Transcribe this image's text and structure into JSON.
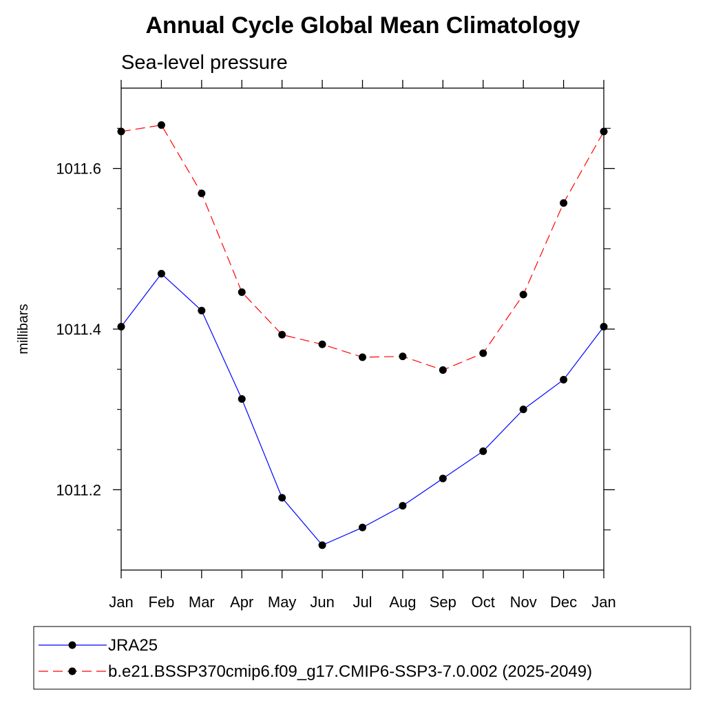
{
  "chart_data": {
    "type": "line",
    "title": "Annual Cycle Global Mean Climatology",
    "subtitle": "Sea-level pressure",
    "xlabel": "",
    "ylabel": "millibars",
    "categories": [
      "Jan",
      "Feb",
      "Mar",
      "Apr",
      "May",
      "Jun",
      "Jul",
      "Aug",
      "Sep",
      "Oct",
      "Nov",
      "Dec",
      "Jan"
    ],
    "ylim": [
      1011.1,
      1011.7
    ],
    "yticks": [
      1011.2,
      1011.4,
      1011.6
    ],
    "ytick_labels": [
      "1011.2",
      "1011.4",
      "1011.6"
    ],
    "yminor_step": 0.05,
    "grid": false,
    "legend_position": "bottom",
    "series": [
      {
        "name": "JRA25",
        "color": "#0000ff",
        "dash": "solid",
        "marker": "filled-circle",
        "values": [
          1011.403,
          1011.469,
          1011.423,
          1011.313,
          1011.19,
          1011.131,
          1011.153,
          1011.18,
          1011.214,
          1011.248,
          1011.3,
          1011.337,
          1011.403
        ]
      },
      {
        "name": "b.e21.BSSP370cmip6.f09_g17.CMIP6-SSP3-7.0.002 (2025-2049)",
        "color": "#ff0000",
        "dash": "dashed",
        "marker": "filled-circle",
        "values": [
          1011.646,
          1011.654,
          1011.569,
          1011.446,
          1011.393,
          1011.381,
          1011.365,
          1011.366,
          1011.349,
          1011.37,
          1011.443,
          1011.557,
          1011.646
        ]
      }
    ]
  }
}
